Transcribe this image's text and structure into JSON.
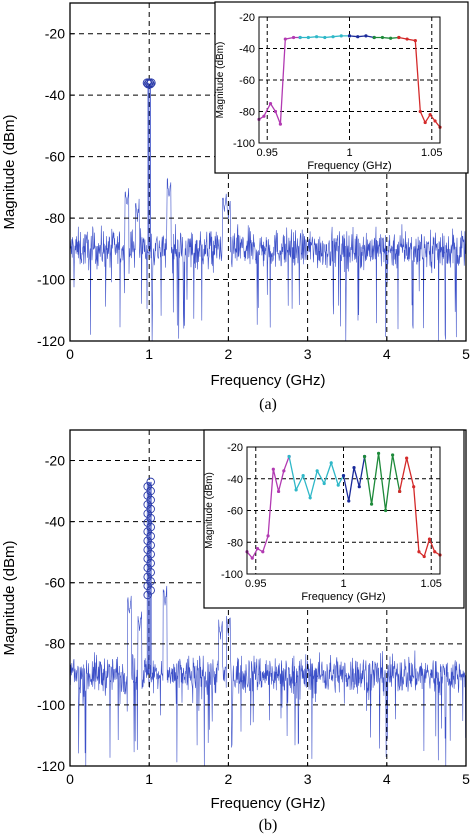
{
  "panels": [
    {
      "caption": "(a)",
      "main": {
        "xlabel": "Frequency (GHz)",
        "ylabel": "Magnitude (dBm)",
        "xticks": [
          "0",
          "1",
          "2",
          "3",
          "4",
          "5"
        ],
        "yticks": [
          "-20",
          "-40",
          "-60",
          "-80",
          "-100",
          "-120"
        ]
      },
      "inset": {
        "xlabel": "Frequency (GHz)",
        "ylabel": "Magnitude (dBm)",
        "xticks": [
          "0.95",
          "1",
          "1.05"
        ],
        "yticks": [
          "-20",
          "-40",
          "-60",
          "-80",
          "-100"
        ]
      }
    },
    {
      "caption": "(b)",
      "main": {
        "xlabel": "Frequency (GHz)",
        "ylabel": "Magnitude (dBm)",
        "xticks": [
          "0",
          "1",
          "2",
          "3",
          "4",
          "5"
        ],
        "yticks": [
          "-20",
          "-40",
          "-60",
          "-80",
          "-100",
          "-120"
        ]
      },
      "inset": {
        "xlabel": "Frequency (GHz)",
        "ylabel": "Magnitude (dBm)",
        "xticks": [
          "0.95",
          "1",
          "1.05"
        ],
        "yticks": [
          "-20",
          "-40",
          "-60",
          "-80",
          "-100"
        ]
      }
    }
  ],
  "colors": {
    "noise": "#3b4fc8",
    "marker": "#2a3aa8",
    "grid": "#000000",
    "inset_segments": [
      "#b23ab2",
      "#2fb8c8",
      "#1a2a9a",
      "#1e8a3a",
      "#d42a2a"
    ]
  },
  "chart_data": [
    {
      "type": "line",
      "panel": "(a)",
      "xlim": [
        0,
        5
      ],
      "ylim": [
        -120,
        -10
      ],
      "xlabel": "Frequency (GHz)",
      "ylabel": "Magnitude (dBm)",
      "grid": true,
      "noise_floor_dbm": -90,
      "peak": {
        "x": 1.0,
        "y": -36
      },
      "spurs": [
        {
          "x": 0.72,
          "y": -76
        },
        {
          "x": 0.85,
          "y": -80
        },
        {
          "x": 1.25,
          "y": -73
        },
        {
          "x": 1.95,
          "y": -78
        },
        {
          "x": 2.0,
          "y": -80
        }
      ]
    },
    {
      "type": "line",
      "panel": "(a) inset",
      "xlim": [
        0.945,
        1.055
      ],
      "ylim": [
        -100,
        -20
      ],
      "xlabel": "Frequency (GHz)",
      "ylabel": "Magnitude (dBm)",
      "series": [
        {
          "x": [
            0.945,
            0.948,
            0.952,
            0.955,
            0.958,
            0.961,
            0.966,
            0.97
          ],
          "y": [
            -85,
            -83,
            -75,
            -80,
            -88,
            -34,
            -33,
            -33
          ]
        },
        {
          "x": [
            0.97,
            0.975,
            0.98,
            0.985,
            0.99,
            0.995,
            1.0
          ],
          "y": [
            -33,
            -33,
            -32.5,
            -33,
            -32.5,
            -32,
            -32
          ]
        },
        {
          "x": [
            1.0,
            1.005,
            1.01,
            1.015
          ],
          "y": [
            -32,
            -32.5,
            -32,
            -33
          ]
        },
        {
          "x": [
            1.015,
            1.02,
            1.025,
            1.03
          ],
          "y": [
            -33,
            -33,
            -33.5,
            -33
          ]
        },
        {
          "x": [
            1.03,
            1.035,
            1.04,
            1.043,
            1.046,
            1.049,
            1.052,
            1.055
          ],
          "y": [
            -33,
            -34,
            -35,
            -80,
            -87,
            -82,
            -86,
            -90
          ]
        }
      ]
    },
    {
      "type": "line",
      "panel": "(b)",
      "xlim": [
        0,
        5
      ],
      "ylim": [
        -120,
        -10
      ],
      "xlabel": "Frequency (GHz)",
      "ylabel": "Magnitude (dBm)",
      "grid": true,
      "noise_floor_dbm": -90,
      "peak_range": {
        "x": 1.0,
        "y_min": -64,
        "y_max": -27
      },
      "spurs": [
        {
          "x": 0.75,
          "y": -70
        },
        {
          "x": 0.88,
          "y": -75
        },
        {
          "x": 1.2,
          "y": -67
        },
        {
          "x": 1.9,
          "y": -78
        },
        {
          "x": 2.0,
          "y": -77
        }
      ]
    },
    {
      "type": "line",
      "panel": "(b) inset",
      "xlim": [
        0.945,
        1.055
      ],
      "ylim": [
        -100,
        -20
      ],
      "xlabel": "Frequency (GHz)",
      "ylabel": "Magnitude (dBm)",
      "series": [
        {
          "x": [
            0.945,
            0.948,
            0.951,
            0.954,
            0.957,
            0.96,
            0.963,
            0.966,
            0.969
          ],
          "y": [
            -86,
            -90,
            -84,
            -86,
            -76,
            -34,
            -48,
            -35,
            -26
          ]
        },
        {
          "x": [
            0.969,
            0.973,
            0.977,
            0.981,
            0.985,
            0.989,
            0.993,
            0.997,
            1.0
          ],
          "y": [
            -26,
            -47,
            -38,
            -52,
            -35,
            -43,
            -30,
            -44,
            -38
          ]
        },
        {
          "x": [
            1.0,
            1.003,
            1.006,
            1.009,
            1.012
          ],
          "y": [
            -38,
            -54,
            -33,
            -45,
            -26
          ]
        },
        {
          "x": [
            1.012,
            1.016,
            1.02,
            1.024,
            1.028,
            1.032
          ],
          "y": [
            -26,
            -56,
            -24,
            -60,
            -25,
            -48
          ]
        },
        {
          "x": [
            1.032,
            1.036,
            1.04,
            1.043,
            1.046,
            1.049,
            1.052,
            1.055
          ],
          "y": [
            -48,
            -27,
            -45,
            -86,
            -89,
            -78,
            -86,
            -88
          ]
        }
      ]
    }
  ]
}
